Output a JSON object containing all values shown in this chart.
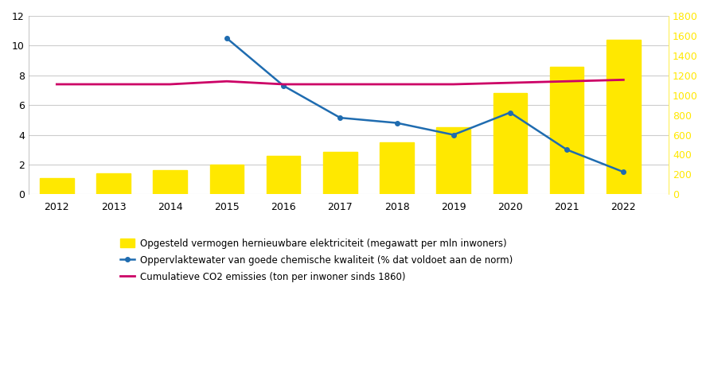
{
  "years": [
    2012,
    2013,
    2014,
    2015,
    2016,
    2017,
    2018,
    2019,
    2020,
    2021,
    2022
  ],
  "bar_values": [
    1.1,
    1.4,
    1.6,
    2.0,
    2.6,
    2.85,
    3.5,
    4.5,
    6.8,
    8.6,
    10.4
  ],
  "blue_line": [
    null,
    null,
    null,
    1575,
    1095,
    772,
    720,
    600,
    825,
    450,
    225
  ],
  "red_line": [
    1110,
    1110,
    1110,
    1140,
    1110,
    1110,
    1110,
    1110,
    1125,
    1140,
    1155
  ],
  "bar_color": "#FFE800",
  "blue_color": "#1F6CB0",
  "red_color": "#CC0066",
  "left_ylim": [
    0,
    12
  ],
  "left_yticks": [
    0,
    2,
    4,
    6,
    8,
    10,
    12
  ],
  "right_ylim": [
    0,
    1800
  ],
  "right_yticks": [
    0,
    200,
    400,
    600,
    800,
    1000,
    1200,
    1400,
    1600,
    1800
  ],
  "right_yticklabels": [
    "0",
    "200",
    "400",
    "600",
    "800",
    "1000",
    "1200",
    "1400",
    "1600",
    "1800"
  ],
  "legend_bar": "Opgesteld vermogen hernieuwbare elektriciteit (megawatt per mln inwoners)",
  "legend_blue": "Oppervlaktewater van goede chemische kwaliteit (% dat voldoet aan de norm)",
  "legend_red": "Cumulatieve CO2 emissies (ton per inwoner sinds 1860)",
  "bg_color": "#ffffff",
  "grid_color": "#cccccc"
}
